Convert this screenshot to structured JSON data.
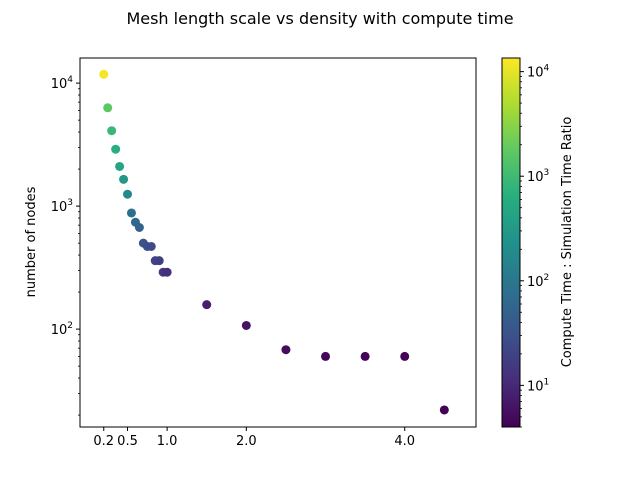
{
  "chart_data": {
    "type": "scatter",
    "title": "Mesh length scale vs density with compute time",
    "xlabel": "",
    "ylabel": "number of nodes",
    "colorbar_label": "Compute Time : Simulation Time Ratio",
    "colormap": "viridis",
    "x_scale": "linear",
    "y_scale": "log",
    "colorbar_scale": "log",
    "xlim": [
      -0.1,
      4.9
    ],
    "ylim": [
      16,
      16000
    ],
    "colorbar_range": [
      4,
      13500
    ],
    "grid": false,
    "x_ticks": [
      {
        "value": 0.2,
        "label": "0.2"
      },
      {
        "value": 0.5,
        "label": "0.5"
      },
      {
        "value": 1.0,
        "label": "1.0"
      },
      {
        "value": 2.0,
        "label": "2.0"
      },
      {
        "value": 4.0,
        "label": "4.0"
      }
    ],
    "y_ticks": [
      {
        "value": 100,
        "base": "10",
        "exp": "2"
      },
      {
        "value": 1000,
        "base": "10",
        "exp": "3"
      },
      {
        "value": 10000,
        "base": "10",
        "exp": "4"
      }
    ],
    "colorbar_ticks": [
      {
        "value": 10,
        "base": "10",
        "exp": "1"
      },
      {
        "value": 100,
        "base": "10",
        "exp": "2"
      },
      {
        "value": 1000,
        "base": "10",
        "exp": "3"
      },
      {
        "value": 10000,
        "base": "10",
        "exp": "4"
      }
    ],
    "points": [
      {
        "x": 0.2,
        "y": 11800,
        "c": 12000
      },
      {
        "x": 0.25,
        "y": 6300,
        "c": 1700
      },
      {
        "x": 0.3,
        "y": 4100,
        "c": 900
      },
      {
        "x": 0.35,
        "y": 2900,
        "c": 650
      },
      {
        "x": 0.4,
        "y": 2100,
        "c": 450
      },
      {
        "x": 0.45,
        "y": 1650,
        "c": 300
      },
      {
        "x": 0.5,
        "y": 1250,
        "c": 180
      },
      {
        "x": 0.55,
        "y": 880,
        "c": 80
      },
      {
        "x": 0.6,
        "y": 740,
        "c": 60
      },
      {
        "x": 0.65,
        "y": 670,
        "c": 50
      },
      {
        "x": 0.7,
        "y": 500,
        "c": 35
      },
      {
        "x": 0.75,
        "y": 470,
        "c": 28
      },
      {
        "x": 0.8,
        "y": 470,
        "c": 25
      },
      {
        "x": 0.85,
        "y": 360,
        "c": 20
      },
      {
        "x": 0.9,
        "y": 360,
        "c": 18
      },
      {
        "x": 0.95,
        "y": 290,
        "c": 14
      },
      {
        "x": 1.0,
        "y": 290,
        "c": 12
      },
      {
        "x": 1.5,
        "y": 158,
        "c": 8
      },
      {
        "x": 2.0,
        "y": 107,
        "c": 6
      },
      {
        "x": 2.5,
        "y": 68,
        "c": 5
      },
      {
        "x": 3.0,
        "y": 60,
        "c": 4.5
      },
      {
        "x": 3.5,
        "y": 60,
        "c": 4.3
      },
      {
        "x": 4.0,
        "y": 60,
        "c": 4.2
      },
      {
        "x": 4.5,
        "y": 22,
        "c": 4
      }
    ]
  }
}
